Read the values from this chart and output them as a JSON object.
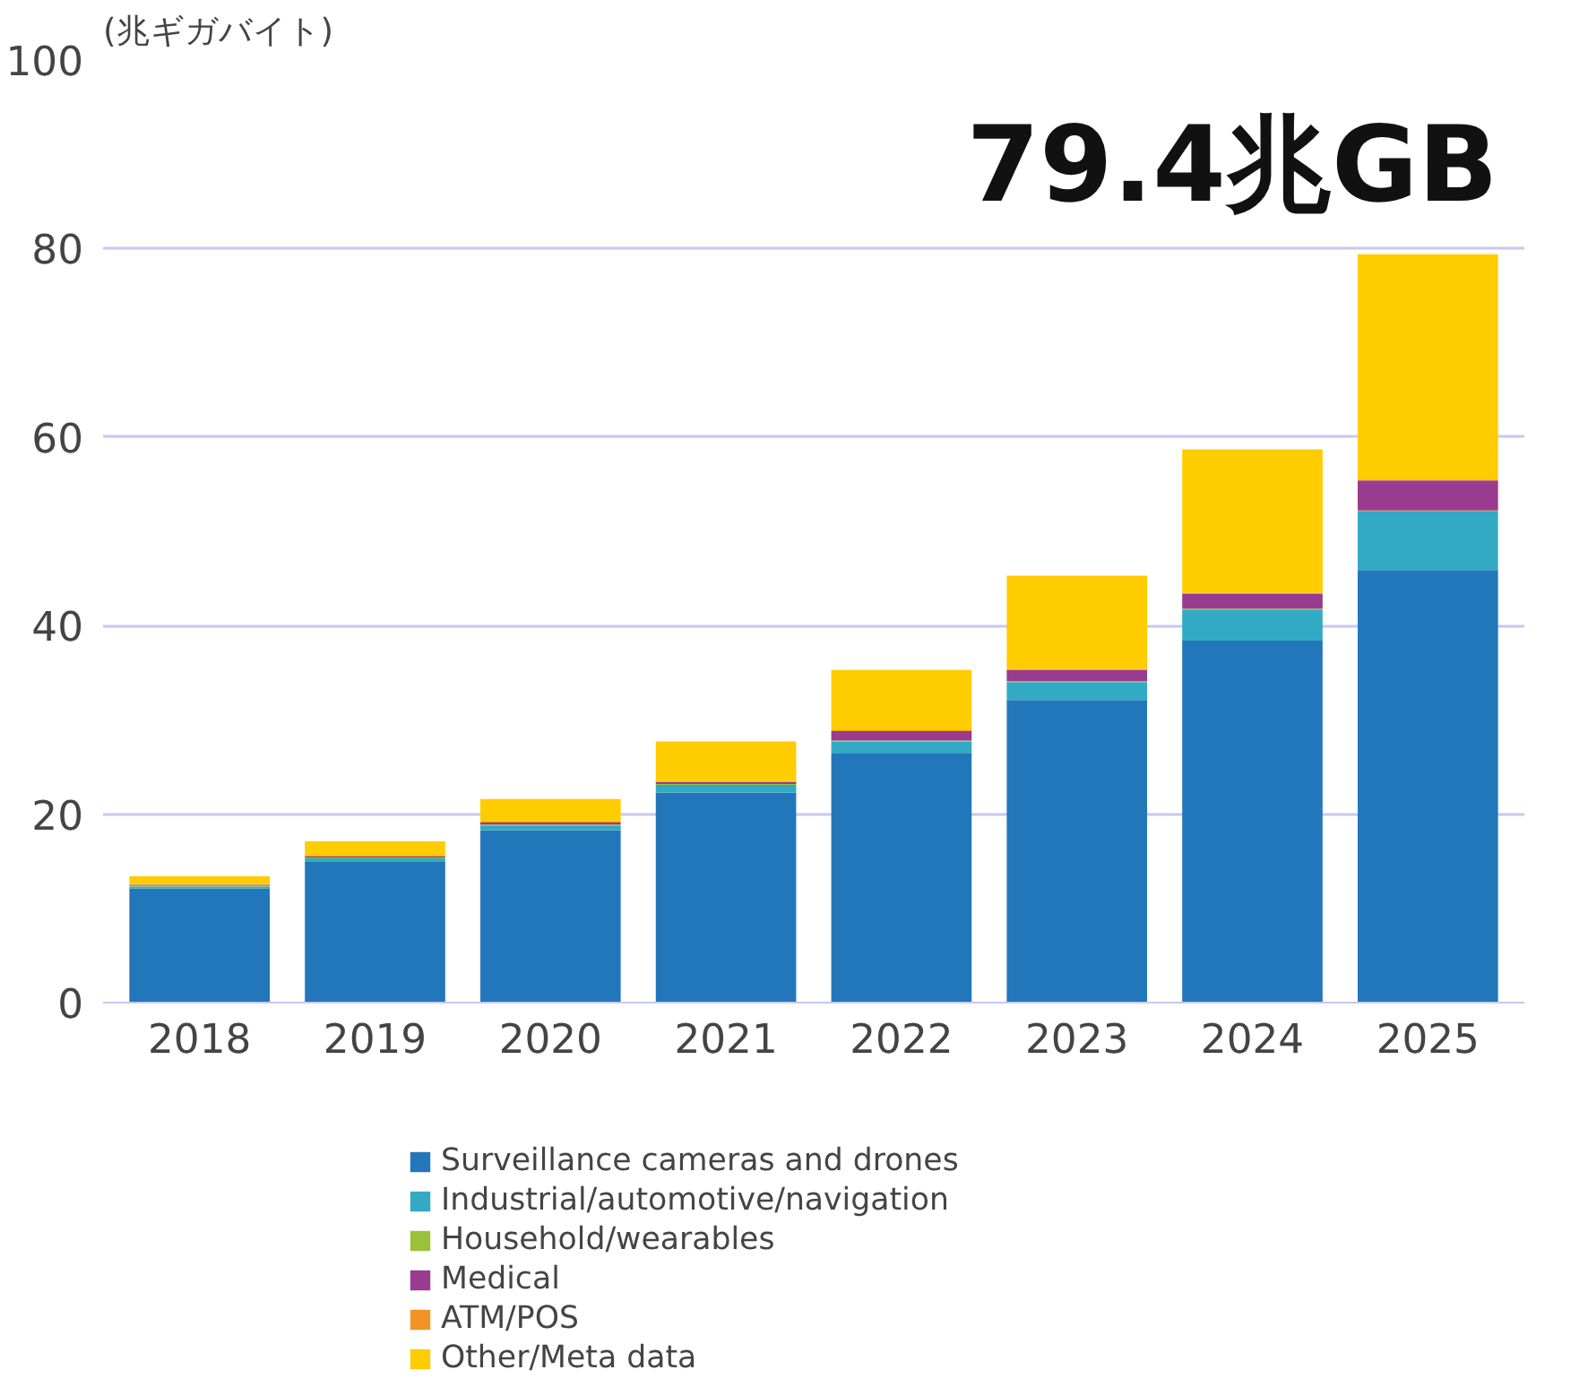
{
  "chart_data": {
    "type": "bar",
    "stacked": true,
    "ylabel": "(兆ギガバイト)",
    "categories": [
      "2018",
      "2019",
      "2020",
      "2021",
      "2022",
      "2023",
      "2024",
      "2025"
    ],
    "series": [
      {
        "name": "Surveillance cameras and drones",
        "color": "#2277bb",
        "values": [
          12.1,
          15.0,
          18.3,
          22.3,
          26.5,
          32.1,
          38.4,
          45.9
        ]
      },
      {
        "name": "Industrial/automotive/navigation",
        "color": "#33aac4",
        "values": [
          0.2,
          0.3,
          0.5,
          0.8,
          1.2,
          1.9,
          3.3,
          6.2
        ]
      },
      {
        "name": "Household/wearables",
        "color": "#99c23a",
        "values": [
          0.1,
          0.1,
          0.1,
          0.1,
          0.1,
          0.1,
          0.1,
          0.1
        ]
      },
      {
        "name": "Medical",
        "color": "#993b8e",
        "values": [
          0.1,
          0.1,
          0.2,
          0.2,
          1.0,
          1.2,
          1.6,
          3.2
        ]
      },
      {
        "name": "ATM/POS",
        "color": "#f39323",
        "values": [
          0.1,
          0.1,
          0.1,
          0.1,
          0.1,
          0.1,
          0.1,
          0.1
        ]
      },
      {
        "name": "Other/Meta data",
        "color": "#ffcc00",
        "values": [
          0.8,
          1.5,
          2.4,
          4.2,
          6.4,
          9.9,
          15.2,
          23.9
        ]
      }
    ],
    "ylim": [
      0,
      100
    ],
    "yticks": [
      0,
      20,
      40,
      60,
      80,
      100
    ],
    "grid": "y",
    "legend": "bottom",
    "annotations": [
      {
        "text": "79.4兆GB",
        "x": "2025",
        "y": 79.4
      }
    ]
  }
}
